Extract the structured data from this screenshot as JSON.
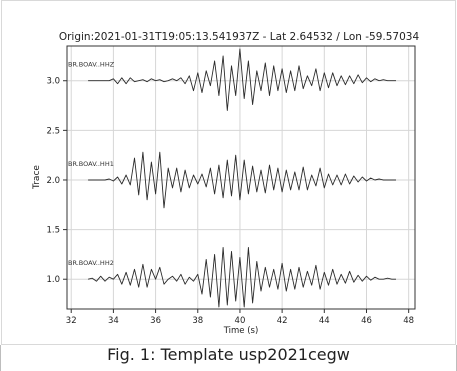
{
  "figure": {
    "caption": "Fig. 1: Template usp2021cegw"
  },
  "chart_data": {
    "type": "line",
    "title": "Origin:2021-01-31T19:05:13.541937Z - Lat 2.64532 / Lon -59.57034",
    "xlabel": "Time (s)",
    "ylabel": "Trace",
    "xlim": [
      31.8,
      48.3
    ],
    "ylim": [
      0.7,
      3.35
    ],
    "xticks": [
      32,
      34,
      36,
      38,
      40,
      42,
      44,
      46,
      48
    ],
    "yticks": [
      1.0,
      1.5,
      2.0,
      2.5,
      3.0
    ],
    "ytick_labels": [
      "1.0",
      "1.5",
      "2.0",
      "2.5",
      "3.0"
    ],
    "grid": true,
    "line_color": "#2b2b2b",
    "series": [
      {
        "name": "BR.BOAV..HHZ",
        "baseline": 3.0,
        "x": [
          32.8,
          33.8,
          34.0,
          34.2,
          34.4,
          34.6,
          34.8,
          35.0,
          35.2,
          35.4,
          35.6,
          35.8,
          36.0,
          36.2,
          36.4,
          36.6,
          36.8,
          37.0,
          37.2,
          37.4,
          37.6,
          37.8,
          38.0,
          38.2,
          38.4,
          38.6,
          38.8,
          39.0,
          39.2,
          39.4,
          39.6,
          39.8,
          40.0,
          40.2,
          40.4,
          40.6,
          40.8,
          41.0,
          41.2,
          41.4,
          41.6,
          41.8,
          42.0,
          42.2,
          42.4,
          42.6,
          42.8,
          43.0,
          43.2,
          43.4,
          43.6,
          43.8,
          44.0,
          44.2,
          44.4,
          44.6,
          44.8,
          45.0,
          45.2,
          45.4,
          45.6,
          45.8,
          46.0,
          46.2,
          46.4,
          46.6,
          46.8,
          47.0,
          47.2,
          47.4
        ],
        "y": [
          3.0,
          3.0,
          3.02,
          2.97,
          3.03,
          2.97,
          3.03,
          2.99,
          3.0,
          3.01,
          2.99,
          3.02,
          3.0,
          3.01,
          2.99,
          3.0,
          3.02,
          3.0,
          3.03,
          2.97,
          3.05,
          2.9,
          3.08,
          2.88,
          3.1,
          2.95,
          3.2,
          2.85,
          3.25,
          2.7,
          3.15,
          2.85,
          3.32,
          2.82,
          3.2,
          2.76,
          3.1,
          2.9,
          3.18,
          2.85,
          3.15,
          2.9,
          3.12,
          2.88,
          3.1,
          2.9,
          3.15,
          2.92,
          3.05,
          2.95,
          3.12,
          2.9,
          3.08,
          2.93,
          3.08,
          2.95,
          3.05,
          2.96,
          3.05,
          2.97,
          3.06,
          2.98,
          3.03,
          2.99,
          3.02,
          3.0,
          3.01,
          3.0,
          3.0,
          3.0
        ]
      },
      {
        "name": "BR.BOAV..HH1",
        "baseline": 2.0,
        "x": [
          32.8,
          33.6,
          33.8,
          34.0,
          34.2,
          34.4,
          34.6,
          34.8,
          35.0,
          35.2,
          35.4,
          35.6,
          35.8,
          36.0,
          36.2,
          36.4,
          36.6,
          36.8,
          37.0,
          37.2,
          37.4,
          37.6,
          37.8,
          38.0,
          38.2,
          38.4,
          38.6,
          38.8,
          39.0,
          39.2,
          39.4,
          39.6,
          39.8,
          40.0,
          40.2,
          40.4,
          40.6,
          40.8,
          41.0,
          41.2,
          41.4,
          41.6,
          41.8,
          42.0,
          42.2,
          42.4,
          42.6,
          42.8,
          43.0,
          43.2,
          43.4,
          43.6,
          43.8,
          44.0,
          44.2,
          44.4,
          44.6,
          44.8,
          45.0,
          45.2,
          45.4,
          45.6,
          45.8,
          46.0,
          46.2,
          46.4,
          46.6,
          46.8,
          47.0,
          47.2,
          47.4
        ],
        "y": [
          2.0,
          2.0,
          2.01,
          1.99,
          2.03,
          1.96,
          2.05,
          1.95,
          2.22,
          1.85,
          2.28,
          1.8,
          2.18,
          1.86,
          2.28,
          1.72,
          2.12,
          1.92,
          2.12,
          1.88,
          2.1,
          1.92,
          2.05,
          1.96,
          2.06,
          1.93,
          2.12,
          1.86,
          2.15,
          1.82,
          2.2,
          1.84,
          2.25,
          1.8,
          2.2,
          1.86,
          2.14,
          1.88,
          2.1,
          1.87,
          2.15,
          1.9,
          2.12,
          1.88,
          2.1,
          1.9,
          2.08,
          1.9,
          2.13,
          1.9,
          2.05,
          1.94,
          2.12,
          1.92,
          2.06,
          1.95,
          2.05,
          1.95,
          2.06,
          1.96,
          2.04,
          1.98,
          2.03,
          1.99,
          2.02,
          2.0,
          2.01,
          2.0,
          2.0,
          2.0,
          2.0
        ]
      },
      {
        "name": "BR.BOAV..HH2",
        "baseline": 1.0,
        "x": [
          32.8,
          33.0,
          33.2,
          33.4,
          33.6,
          33.8,
          34.0,
          34.2,
          34.4,
          34.6,
          34.8,
          35.0,
          35.2,
          35.4,
          35.6,
          35.8,
          36.0,
          36.2,
          36.4,
          36.6,
          36.8,
          37.0,
          37.2,
          37.4,
          37.6,
          37.8,
          38.0,
          38.2,
          38.4,
          38.6,
          38.8,
          39.0,
          39.2,
          39.4,
          39.6,
          39.8,
          40.0,
          40.2,
          40.4,
          40.6,
          40.8,
          41.0,
          41.2,
          41.4,
          41.6,
          41.8,
          42.0,
          42.2,
          42.4,
          42.6,
          42.8,
          43.0,
          43.2,
          43.4,
          43.6,
          43.8,
          44.0,
          44.2,
          44.4,
          44.6,
          44.8,
          45.0,
          45.2,
          45.4,
          45.6,
          45.8,
          46.0,
          46.2,
          46.4,
          46.6,
          46.8,
          47.0,
          47.2,
          47.4
        ],
        "y": [
          1.0,
          1.01,
          0.98,
          1.03,
          0.98,
          1.02,
          1.0,
          1.05,
          0.95,
          1.07,
          0.94,
          1.1,
          0.92,
          1.15,
          0.92,
          1.1,
          1.0,
          1.12,
          0.95,
          1.0,
          1.03,
          0.98,
          1.05,
          0.95,
          1.02,
          0.98,
          1.05,
          0.85,
          1.2,
          0.82,
          1.25,
          0.72,
          1.32,
          0.74,
          1.28,
          0.78,
          1.22,
          0.72,
          1.32,
          0.76,
          1.18,
          0.88,
          1.12,
          0.92,
          1.1,
          0.9,
          1.16,
          0.88,
          1.1,
          0.9,
          1.12,
          0.92,
          1.08,
          0.94,
          1.14,
          0.9,
          1.07,
          0.94,
          1.1,
          0.95,
          1.05,
          0.96,
          1.08,
          0.97,
          1.04,
          0.98,
          1.03,
          0.99,
          1.02,
          1.0,
          1.0,
          1.01,
          1.0,
          1.0
        ]
      }
    ]
  }
}
